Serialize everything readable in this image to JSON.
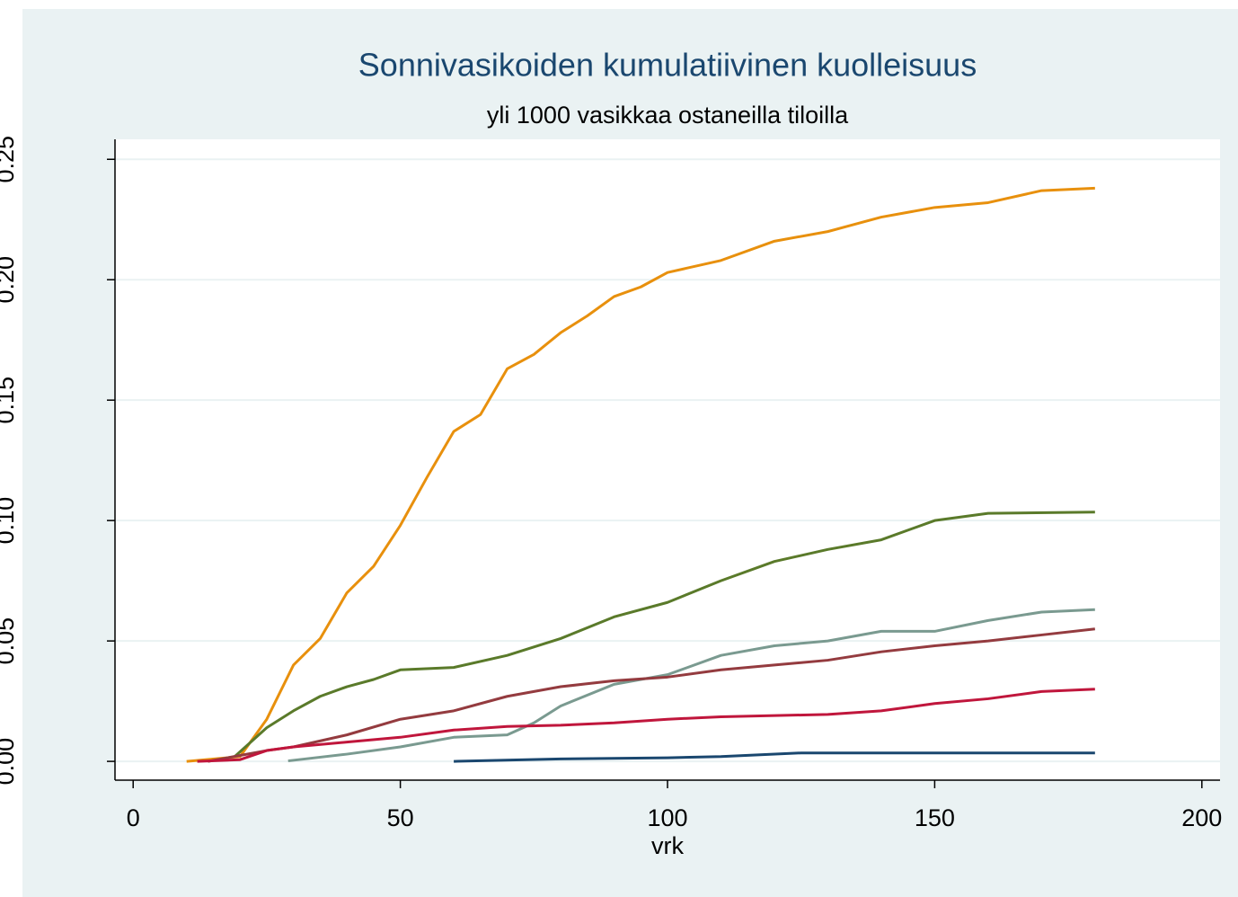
{
  "chart_data": {
    "type": "line",
    "title": "Sonnivasikoiden kumulatiivinen kuolleisuus",
    "subtitle": "yli 1000 vasikkaa ostaneilla tiloilla",
    "xlabel": "vrk",
    "xlim": [
      -3.4,
      203.4
    ],
    "xticks": [
      0,
      50,
      100,
      150,
      200
    ],
    "ylim": [
      -0.0078,
      0.2583
    ],
    "yticks": [
      {
        "value": 0,
        "label": "0.00"
      },
      {
        "value": 0.05,
        "label": "0.05"
      },
      {
        "value": 0.1,
        "label": "0.10"
      },
      {
        "value": 0.15,
        "label": "0.15"
      },
      {
        "value": 0.2,
        "label": "0.20"
      },
      {
        "value": 0.25,
        "label": "0.25"
      }
    ],
    "grid": true,
    "series": [
      {
        "color": "#e8900d",
        "x": [
          10,
          20,
          25,
          30,
          35,
          40,
          45,
          50,
          55,
          60,
          65,
          70,
          75,
          80,
          85,
          90,
          95,
          100,
          110,
          120,
          130,
          140,
          150,
          160,
          170,
          180
        ],
        "values": [
          0,
          0.002,
          0.0175,
          0.04,
          0.051,
          0.07,
          0.081,
          0.098,
          0.118,
          0.137,
          0.144,
          0.163,
          0.169,
          0.178,
          0.185,
          0.193,
          0.197,
          0.203,
          0.208,
          0.216,
          0.22,
          0.226,
          0.23,
          0.232,
          0.237,
          0.238
        ]
      },
      {
        "color": "#5a7a2a",
        "x": [
          19,
          25,
          30,
          35,
          40,
          45,
          50,
          60,
          70,
          80,
          90,
          100,
          110,
          120,
          130,
          140,
          150,
          160,
          180
        ],
        "values": [
          0.002,
          0.014,
          0.021,
          0.027,
          0.031,
          0.034,
          0.038,
          0.039,
          0.044,
          0.051,
          0.06,
          0.066,
          0.075,
          0.083,
          0.088,
          0.092,
          0.1,
          0.103,
          0.1035
        ]
      },
      {
        "color": "#7a9a90",
        "x": [
          29,
          40,
          50,
          60,
          70,
          75,
          80,
          90,
          100,
          110,
          120,
          130,
          140,
          150,
          160,
          170,
          180
        ],
        "values": [
          0.0002,
          0.003,
          0.006,
          0.01,
          0.011,
          0.016,
          0.023,
          0.032,
          0.036,
          0.044,
          0.048,
          0.05,
          0.054,
          0.054,
          0.0585,
          0.062,
          0.063
        ]
      },
      {
        "color": "#943b3f",
        "x": [
          14,
          25,
          30,
          40,
          50,
          60,
          70,
          80,
          90,
          100,
          110,
          120,
          130,
          140,
          150,
          160,
          170,
          180
        ],
        "values": [
          0,
          0.0045,
          0.006,
          0.011,
          0.0175,
          0.021,
          0.027,
          0.031,
          0.0335,
          0.035,
          0.038,
          0.04,
          0.042,
          0.0455,
          0.048,
          0.05,
          0.0525,
          0.055
        ]
      },
      {
        "color": "#c0163c",
        "x": [
          12,
          20,
          25,
          30,
          40,
          50,
          60,
          70,
          80,
          90,
          100,
          110,
          130,
          140,
          150,
          160,
          170,
          180
        ],
        "values": [
          0,
          0.0007,
          0.0045,
          0.006,
          0.008,
          0.01,
          0.013,
          0.0145,
          0.015,
          0.016,
          0.0175,
          0.0185,
          0.0195,
          0.021,
          0.024,
          0.026,
          0.029,
          0.03
        ]
      },
      {
        "color": "#1a476f",
        "x": [
          60,
          80,
          100,
          110,
          125,
          180
        ],
        "values": [
          0,
          0.001,
          0.0015,
          0.002,
          0.0035,
          0.0035
        ]
      }
    ]
  }
}
